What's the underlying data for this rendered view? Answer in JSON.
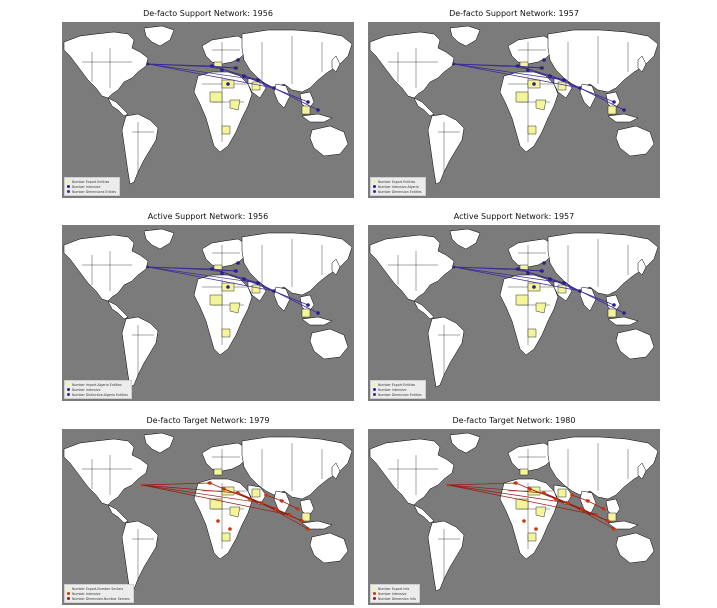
{
  "panels": [
    {
      "title": "De-facto Support Network: 1956",
      "legend": [
        "Number Export Entities",
        "Number Intensive",
        "Number Dimensions Enities"
      ],
      "theme": "support"
    },
    {
      "title": "De-facto Support Network: 1957",
      "legend": [
        "Number Export Entities",
        "Number Intensive-Algeria",
        "Number Dimension Entities"
      ],
      "theme": "support"
    },
    {
      "title": "Active Support Network: 1956",
      "legend": [
        "Number Import-Algeria Entities",
        "Number Intensive",
        "Number Distinctive-Algeria Entities"
      ],
      "theme": "support"
    },
    {
      "title": "Active Support Network: 1957",
      "legend": [
        "Number Export Entities",
        "Number Intensive",
        "Number Dimension Entities"
      ],
      "theme": "support"
    },
    {
      "title": "De-facto Target Network: 1979",
      "legend": [
        "Number Export-Number Sectors",
        "Number Intensive",
        "Number Dimension-Number Sectors"
      ],
      "theme": "target"
    },
    {
      "title": "De-facto Target Network: 1980",
      "legend": [
        "Number Export Info",
        "Number Intensive",
        "Number Dimension Info"
      ],
      "theme": "target"
    }
  ],
  "colors": {
    "ocean": "#7b7b7b",
    "land": "#ffffff",
    "border": "#000000",
    "highlight": "#f4f59a",
    "support_edge": "#3a2a9a",
    "support_node": "#2b1f8a",
    "target_edge": "#9b1a0e",
    "target_node": "#c8370f"
  }
}
